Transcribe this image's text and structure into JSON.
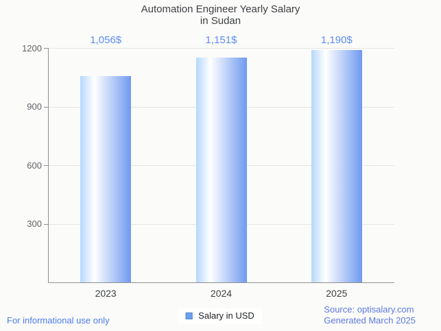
{
  "title": {
    "line1": "Automation Engineer Yearly Salary",
    "line2": "in Sudan"
  },
  "chart_data": {
    "type": "bar",
    "title": "Automation Engineer Yearly Salary in Sudan",
    "categories": [
      "2023",
      "2024",
      "2025"
    ],
    "values": [
      1056,
      1151,
      1190
    ],
    "value_labels": [
      "1,056$",
      "1,151$",
      "1,190$"
    ],
    "series_name": "Salary in USD",
    "xlabel": "",
    "ylabel": "",
    "ylim": [
      0,
      1200
    ],
    "yticks": [
      300,
      600,
      900,
      1200
    ],
    "grid": true,
    "legend_position": "bottom-center",
    "bar_color_gradient": [
      "#b5d7fc",
      "#ffffff",
      "#6f9af0"
    ],
    "value_label_color": "#5b8df2"
  },
  "legend": {
    "label": "Salary in USD",
    "swatch_color": "#6ca2f5"
  },
  "footer": {
    "left_note": "For informational use only",
    "source": "Source: optisalary.com",
    "generated": "Generated March 2025"
  }
}
